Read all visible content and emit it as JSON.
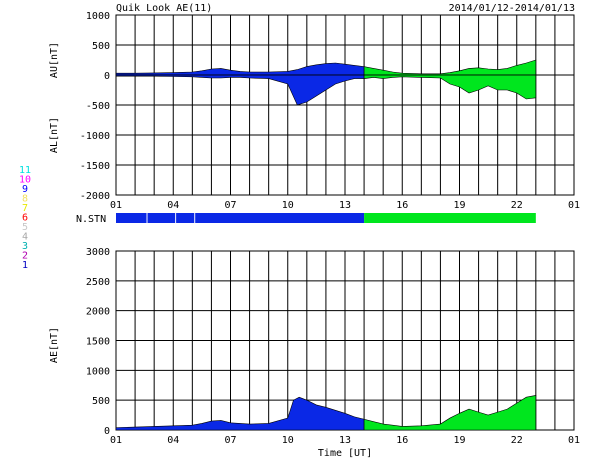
{
  "header": {
    "title": "Quik Look AE(11)",
    "date_range": "2014/01/12-2014/01/13"
  },
  "legend": {
    "items": [
      {
        "label": "11",
        "color": "#00e0e0"
      },
      {
        "label": "10",
        "color": "#ff00ff"
      },
      {
        "label": "9",
        "color": "#0000ff"
      },
      {
        "label": "8",
        "color": "#f4e060"
      },
      {
        "label": "7",
        "color": "#e8e800"
      },
      {
        "label": "6",
        "color": "#ff0000"
      },
      {
        "label": "5",
        "color": "#c8c8c8"
      },
      {
        "label": "4",
        "color": "#a8a8a8"
      },
      {
        "label": "3",
        "color": "#00b0b0"
      },
      {
        "label": "2",
        "color": "#b000b0"
      },
      {
        "label": "1",
        "color": "#0000c0"
      }
    ]
  },
  "colors": {
    "blue": "#0a28e6",
    "green": "#00e61e",
    "grid": "#000000"
  },
  "chart_data": [
    {
      "type": "area",
      "name": "AU/AL",
      "ylabel_top": "AU[nT]",
      "ylabel_bottom": "AL[nT]",
      "xlim": [
        1,
        25
      ],
      "ylim": [
        -2000,
        1000
      ],
      "yticks": [
        "1000",
        "500",
        "0",
        "-500",
        "-1000",
        "-1500",
        "-2000"
      ],
      "ytick_values": [
        1000,
        500,
        0,
        -500,
        -1000,
        -1500,
        -2000
      ],
      "xticks": [
        "01",
        "04",
        "07",
        "10",
        "13",
        "16",
        "19",
        "22",
        "01"
      ],
      "xtick_values": [
        1,
        4,
        7,
        10,
        13,
        16,
        19,
        22,
        25
      ],
      "color_switch_hour": 14,
      "data_end_hour": 23,
      "au": {
        "x": [
          1,
          2,
          3,
          4,
          5,
          5.5,
          6,
          6.5,
          7,
          7.5,
          8,
          9,
          10,
          10.5,
          11,
          11.5,
          12,
          12.5,
          13,
          13.5,
          14,
          14.5,
          15,
          15.5,
          16,
          17,
          18,
          18.5,
          19,
          19.5,
          20,
          20.5,
          21,
          21.5,
          22,
          22.5,
          23
        ],
        "y": [
          30,
          30,
          35,
          40,
          50,
          70,
          100,
          110,
          80,
          60,
          50,
          50,
          60,
          90,
          140,
          170,
          190,
          200,
          180,
          160,
          140,
          110,
          80,
          50,
          30,
          20,
          20,
          40,
          70,
          110,
          120,
          100,
          90,
          110,
          160,
          200,
          250
        ]
      },
      "al": {
        "x": [
          1,
          2,
          3,
          4,
          5,
          5.5,
          6,
          6.5,
          7,
          7.5,
          8,
          9,
          10,
          10.5,
          11,
          11.5,
          12,
          12.5,
          13,
          13.5,
          14,
          14.5,
          15,
          15.5,
          16,
          17,
          18,
          18.5,
          19,
          19.5,
          20,
          20.5,
          21,
          21.5,
          22,
          22.5,
          23
        ],
        "y": [
          -20,
          -20,
          -20,
          -25,
          -30,
          -40,
          -50,
          -50,
          -40,
          -40,
          -50,
          -60,
          -150,
          -500,
          -450,
          -350,
          -250,
          -150,
          -100,
          -60,
          -60,
          -40,
          -60,
          -40,
          -30,
          -40,
          -50,
          -150,
          -200,
          -300,
          -250,
          -180,
          -250,
          -250,
          -300,
          -400,
          -380
        ]
      }
    },
    {
      "type": "area",
      "name": "AE",
      "ylabel": "AE[nT]",
      "xlabel": "Time [UT]",
      "xlim": [
        1,
        25
      ],
      "ylim": [
        0,
        3000
      ],
      "yticks": [
        "3000",
        "2500",
        "2000",
        "1500",
        "1000",
        "500",
        "0"
      ],
      "ytick_values": [
        3000,
        2500,
        2000,
        1500,
        1000,
        500,
        0
      ],
      "xticks": [
        "01",
        "04",
        "07",
        "10",
        "13",
        "16",
        "19",
        "22",
        "01"
      ],
      "xtick_values": [
        1,
        4,
        7,
        10,
        13,
        16,
        19,
        22,
        25
      ],
      "color_switch_hour": 14,
      "data_end_hour": 23,
      "x": [
        1,
        2,
        3,
        4,
        5,
        5.5,
        6,
        6.5,
        7,
        7.5,
        8,
        9,
        10,
        10.3,
        10.6,
        11,
        11.5,
        12,
        12.5,
        13,
        13.5,
        14,
        14.5,
        15,
        15.5,
        16,
        17,
        18,
        18.5,
        19,
        19.5,
        20,
        20.5,
        21,
        21.5,
        22,
        22.5,
        23
      ],
      "y": [
        40,
        50,
        60,
        70,
        80,
        110,
        150,
        160,
        120,
        110,
        100,
        110,
        200,
        500,
        550,
        500,
        420,
        380,
        330,
        280,
        220,
        180,
        140,
        100,
        80,
        60,
        70,
        100,
        200,
        280,
        350,
        300,
        250,
        300,
        350,
        450,
        550,
        580
      ]
    }
  ],
  "station_bar": {
    "label": "N.STN",
    "segments": [
      {
        "from": 1,
        "to": 2.6,
        "color": "#0a28e6"
      },
      {
        "from": 2.65,
        "to": 4.1,
        "color": "#0a28e6"
      },
      {
        "from": 4.15,
        "to": 5.1,
        "color": "#0a28e6"
      },
      {
        "from": 5.15,
        "to": 14,
        "color": "#0a28e6"
      },
      {
        "from": 14,
        "to": 23,
        "color": "#00e61e"
      }
    ]
  }
}
